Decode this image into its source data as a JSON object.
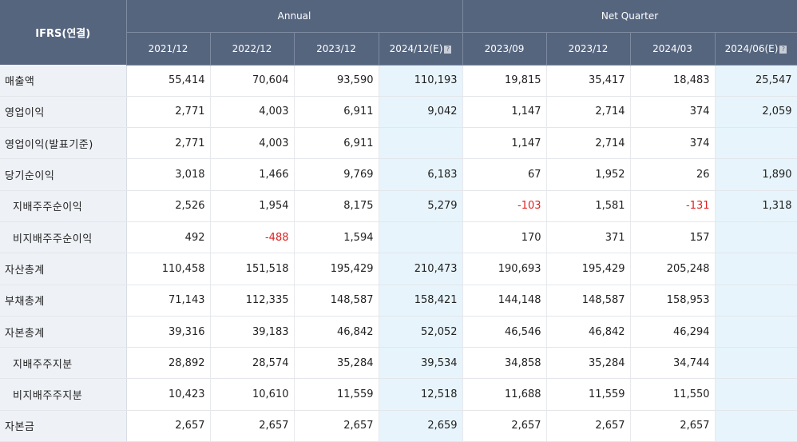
{
  "header": {
    "corner_label": "IFRS(연결)",
    "annual_label": "Annual",
    "quarter_label": "Net Quarter",
    "est_icon": "?",
    "periods": [
      "2021/12",
      "2022/12",
      "2023/12",
      "2024/12(E)",
      "2023/09",
      "2023/12",
      "2024/03",
      "2024/06(E)"
    ]
  },
  "rows": [
    {
      "label": "매출액",
      "sub": false,
      "values": [
        "55,414",
        "70,604",
        "93,590",
        "110,193",
        "19,815",
        "35,417",
        "18,483",
        "25,547"
      ]
    },
    {
      "label": "영업이익",
      "sub": false,
      "values": [
        "2,771",
        "4,003",
        "6,911",
        "9,042",
        "1,147",
        "2,714",
        "374",
        "2,059"
      ]
    },
    {
      "label": "영업이익(발표기준)",
      "sub": false,
      "values": [
        "2,771",
        "4,003",
        "6,911",
        "",
        "1,147",
        "2,714",
        "374",
        ""
      ]
    },
    {
      "label": "당기순이익",
      "sub": false,
      "values": [
        "3,018",
        "1,466",
        "9,769",
        "6,183",
        "67",
        "1,952",
        "26",
        "1,890"
      ]
    },
    {
      "label": "지배주주순이익",
      "sub": true,
      "values": [
        "2,526",
        "1,954",
        "8,175",
        "5,279",
        "-103",
        "1,581",
        "-131",
        "1,318"
      ]
    },
    {
      "label": "비지배주주순이익",
      "sub": true,
      "values": [
        "492",
        "-488",
        "1,594",
        "",
        "170",
        "371",
        "157",
        ""
      ]
    },
    {
      "label": "자산총계",
      "sub": false,
      "values": [
        "110,458",
        "151,518",
        "195,429",
        "210,473",
        "190,693",
        "195,429",
        "205,248",
        ""
      ]
    },
    {
      "label": "부채총계",
      "sub": false,
      "values": [
        "71,143",
        "112,335",
        "148,587",
        "158,421",
        "144,148",
        "148,587",
        "158,953",
        ""
      ]
    },
    {
      "label": "자본총계",
      "sub": false,
      "values": [
        "39,316",
        "39,183",
        "46,842",
        "52,052",
        "46,546",
        "46,842",
        "46,294",
        ""
      ]
    },
    {
      "label": "지배주주지분",
      "sub": true,
      "values": [
        "28,892",
        "28,574",
        "35,284",
        "39,534",
        "34,858",
        "35,284",
        "34,744",
        ""
      ]
    },
    {
      "label": "비지배주주지분",
      "sub": true,
      "values": [
        "10,423",
        "10,610",
        "11,559",
        "12,518",
        "11,688",
        "11,559",
        "11,550",
        ""
      ]
    },
    {
      "label": "자본금",
      "sub": false,
      "values": [
        "2,657",
        "2,657",
        "2,657",
        "2,659",
        "2,657",
        "2,657",
        "2,657",
        ""
      ]
    }
  ],
  "colors": {
    "header_bg": "#56657e",
    "label_bg": "#eef1f6",
    "estimate_bg": "#e7f4fb",
    "negative": "#e02020"
  }
}
